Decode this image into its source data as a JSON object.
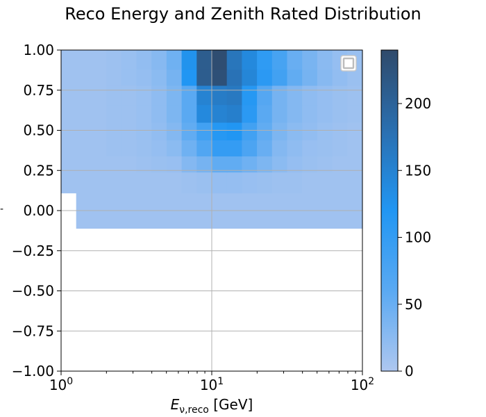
{
  "chart_data": {
    "type": "heatmap",
    "title": "Reco Energy and Zenith Rated Distribution",
    "xlabel": "E_{ν,reco} [GeV]",
    "ylabel": "",
    "x_scale": "log",
    "xlim": [
      1,
      100
    ],
    "ylim": [
      -1.0,
      1.0
    ],
    "x_ticks": [
      {
        "value": 1,
        "base": "10",
        "exp": "0"
      },
      {
        "value": 10,
        "base": "10",
        "exp": "1"
      },
      {
        "value": 100,
        "base": "10",
        "exp": "2"
      }
    ],
    "y_ticks": [
      "1.00",
      "0.75",
      "0.50",
      "0.25",
      "0.00",
      "−0.25",
      "−0.50",
      "−0.75",
      "−1.00"
    ],
    "grid": true,
    "legend": {
      "placement": "top-right",
      "entries": []
    },
    "x_bin_edges": [
      1.0,
      1.259,
      1.585,
      1.995,
      2.512,
      3.162,
      3.981,
      5.012,
      6.31,
      7.943,
      10.0,
      12.589,
      15.849,
      19.953,
      25.119,
      31.623,
      39.811,
      50.119,
      63.096,
      79.433,
      100.0
    ],
    "y_bin_edges": [
      -0.11,
      0.11,
      0.24,
      0.34,
      0.44,
      0.55,
      0.66,
      0.78,
      0.88,
      1.0
    ],
    "x_start_bin_per_row": [
      1,
      0,
      0,
      0,
      0,
      0,
      0,
      0,
      0
    ],
    "values": [
      [
        10,
        10,
        10,
        10,
        10,
        10,
        10,
        10,
        10,
        10,
        10,
        10,
        10,
        10,
        10,
        10,
        10,
        10,
        10,
        10
      ],
      [
        10,
        10,
        10,
        10,
        10,
        10,
        10,
        10,
        12,
        14,
        18,
        18,
        16,
        14,
        12,
        12,
        10,
        10,
        10,
        10
      ],
      [
        10,
        10,
        10,
        10,
        10,
        12,
        14,
        16,
        30,
        40,
        55,
        55,
        45,
        35,
        25,
        18,
        14,
        12,
        10,
        10
      ],
      [
        10,
        10,
        10,
        12,
        12,
        14,
        18,
        25,
        45,
        70,
        100,
        100,
        75,
        50,
        30,
        22,
        16,
        14,
        12,
        10
      ],
      [
        10,
        10,
        10,
        12,
        12,
        15,
        20,
        30,
        55,
        85,
        115,
        120,
        85,
        55,
        35,
        25,
        20,
        15,
        12,
        10
      ],
      [
        10,
        10,
        10,
        12,
        12,
        15,
        22,
        35,
        60,
        140,
        150,
        155,
        110,
        60,
        40,
        30,
        22,
        18,
        14,
        12
      ],
      [
        10,
        10,
        10,
        12,
        12,
        15,
        22,
        35,
        60,
        150,
        160,
        165,
        115,
        65,
        40,
        30,
        22,
        18,
        14,
        12
      ],
      [
        10,
        10,
        10,
        12,
        15,
        18,
        25,
        40,
        120,
        210,
        230,
        175,
        145,
        110,
        85,
        55,
        40,
        28,
        20,
        14
      ],
      [
        10,
        10,
        10,
        12,
        15,
        20,
        28,
        45,
        125,
        210,
        235,
        170,
        140,
        105,
        80,
        50,
        38,
        26,
        18,
        14
      ]
    ],
    "colorbar": {
      "range": [
        0,
        240
      ],
      "ticks": [
        0,
        50,
        100,
        150,
        200
      ],
      "stops": [
        "#aec7f0",
        "#5aa9f2",
        "#2196f3",
        "#2a6fb0",
        "#2f4a6b"
      ]
    }
  }
}
